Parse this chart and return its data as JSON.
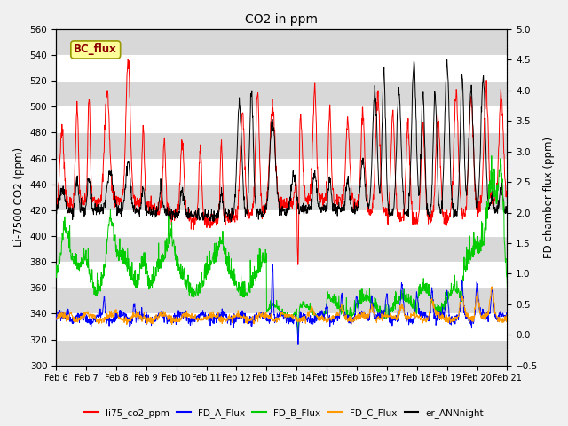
{
  "title": "CO2 in ppm",
  "ylabel_left": "Li-7500 CO2 (ppm)",
  "ylabel_right": "FD chamber flux (ppm)",
  "ylim_left": [
    300,
    560
  ],
  "ylim_right": [
    -0.5,
    5.0
  ],
  "yticks_left": [
    300,
    320,
    340,
    360,
    380,
    400,
    420,
    440,
    460,
    480,
    500,
    520,
    540,
    560
  ],
  "yticks_right": [
    -0.5,
    0.0,
    0.5,
    1.0,
    1.5,
    2.0,
    2.5,
    3.0,
    3.5,
    4.0,
    4.5,
    5.0
  ],
  "xtick_labels": [
    "Feb 6",
    "Feb 7",
    "Feb 8",
    "Feb 9",
    "Feb 10",
    "Feb 11",
    "Feb 12",
    "Feb 13",
    "Feb 14",
    "Feb 15",
    "Feb 16",
    "Feb 17",
    "Feb 18",
    "Feb 19",
    "Feb 20",
    "Feb 21"
  ],
  "colors": {
    "li75_co2_ppm": "#ff0000",
    "FD_A_Flux": "#0000ff",
    "FD_B_Flux": "#00cc00",
    "FD_C_Flux": "#ff9900",
    "er_ANNnight": "#000000"
  },
  "annotation_text": "BC_flux",
  "annotation_color": "#8B0000",
  "annotation_bg": "#ffff99",
  "annotation_border": "#999900",
  "bg_color": "#f0f0f0",
  "plot_bg": "#e8e8e8",
  "band_color": "#d8d8d8",
  "n_points": 1500
}
